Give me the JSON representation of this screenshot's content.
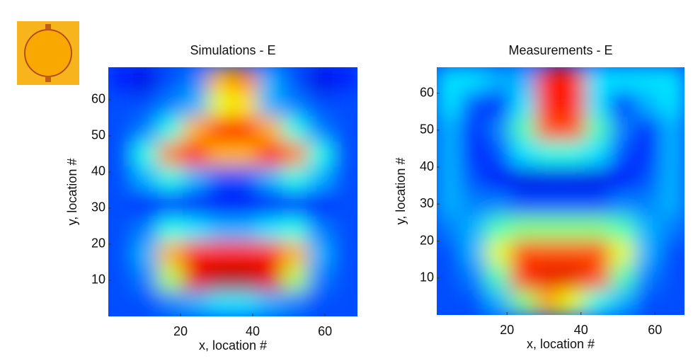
{
  "chart_data": [
    {
      "type": "heatmap",
      "title": "Simulations - E",
      "xlabel": "x, location #",
      "ylabel": "y, location #",
      "xlim": [
        0,
        69
      ],
      "ylim": [
        0,
        69
      ],
      "xticks": [
        20,
        40,
        60
      ],
      "yticks": [
        10,
        20,
        30,
        40,
        50,
        60
      ],
      "colormap": "jet",
      "z": [
        [
          0.15,
          0.1,
          0.2,
          0.25,
          0.7,
          0.75,
          0.3,
          0.2,
          0.1,
          0.15
        ],
        [
          0.2,
          0.2,
          0.25,
          0.3,
          0.6,
          0.65,
          0.3,
          0.25,
          0.2,
          0.2
        ],
        [
          0.2,
          0.25,
          0.4,
          0.7,
          0.85,
          0.85,
          0.7,
          0.4,
          0.25,
          0.2
        ],
        [
          0.2,
          0.4,
          0.75,
          0.85,
          0.7,
          0.7,
          0.85,
          0.75,
          0.4,
          0.2
        ],
        [
          0.2,
          0.3,
          0.4,
          0.3,
          0.2,
          0.2,
          0.3,
          0.4,
          0.3,
          0.2
        ],
        [
          0.2,
          0.15,
          0.15,
          0.12,
          0.12,
          0.12,
          0.12,
          0.15,
          0.15,
          0.2
        ],
        [
          0.2,
          0.25,
          0.4,
          0.35,
          0.3,
          0.3,
          0.35,
          0.4,
          0.25,
          0.2
        ],
        [
          0.2,
          0.3,
          0.7,
          0.85,
          0.85,
          0.85,
          0.85,
          0.7,
          0.3,
          0.2
        ],
        [
          0.2,
          0.25,
          0.55,
          0.9,
          0.95,
          0.95,
          0.9,
          0.55,
          0.25,
          0.2
        ],
        [
          0.2,
          0.2,
          0.25,
          0.3,
          0.35,
          0.35,
          0.3,
          0.25,
          0.2,
          0.2
        ]
      ]
    },
    {
      "type": "heatmap",
      "title": "Measurements - E",
      "xlabel": "x, location #",
      "ylabel": "y, location #",
      "xlim": [
        1,
        68
      ],
      "ylim": [
        0,
        67
      ],
      "xticks": [
        20,
        40,
        60
      ],
      "yticks": [
        10,
        20,
        30,
        40,
        50,
        60
      ],
      "colormap": "jet",
      "z": [
        [
          0.35,
          0.35,
          0.3,
          0.3,
          0.85,
          0.85,
          0.35,
          0.35,
          0.35,
          0.35
        ],
        [
          0.35,
          0.2,
          0.15,
          0.35,
          0.85,
          0.85,
          0.35,
          0.15,
          0.3,
          0.35
        ],
        [
          0.3,
          0.15,
          0.25,
          0.45,
          0.8,
          0.8,
          0.45,
          0.25,
          0.15,
          0.3
        ],
        [
          0.3,
          0.15,
          0.2,
          0.35,
          0.4,
          0.4,
          0.35,
          0.2,
          0.15,
          0.3
        ],
        [
          0.3,
          0.2,
          0.12,
          0.1,
          0.1,
          0.1,
          0.1,
          0.12,
          0.2,
          0.3
        ],
        [
          0.3,
          0.25,
          0.25,
          0.2,
          0.2,
          0.2,
          0.2,
          0.25,
          0.25,
          0.3
        ],
        [
          0.25,
          0.3,
          0.45,
          0.5,
          0.5,
          0.5,
          0.5,
          0.45,
          0.3,
          0.25
        ],
        [
          0.2,
          0.3,
          0.6,
          0.8,
          0.8,
          0.8,
          0.8,
          0.6,
          0.3,
          0.2
        ],
        [
          0.2,
          0.25,
          0.45,
          0.85,
          0.9,
          0.9,
          0.8,
          0.45,
          0.25,
          0.2
        ],
        [
          0.2,
          0.2,
          0.3,
          0.5,
          0.7,
          0.6,
          0.4,
          0.3,
          0.2,
          0.2
        ]
      ]
    }
  ]
}
